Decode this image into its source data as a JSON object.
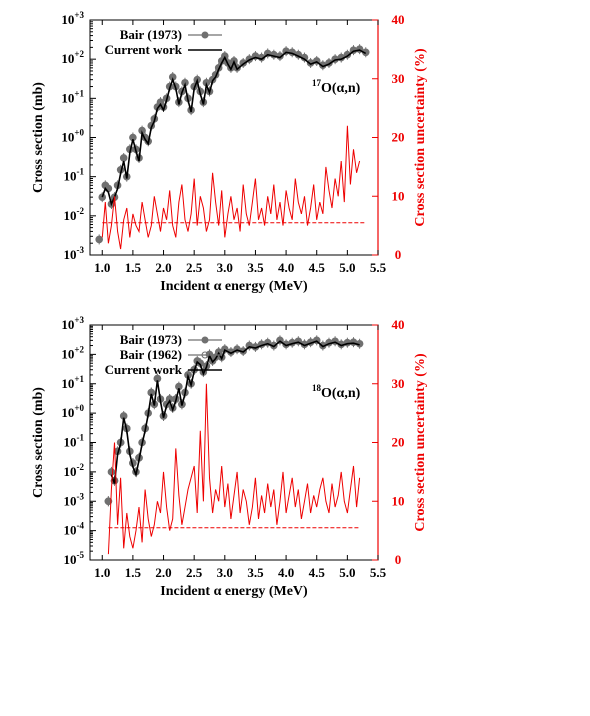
{
  "colors": {
    "primary": "#000000",
    "secondary": "#ee0000",
    "data": "#707070"
  },
  "chart_data": [
    {
      "type": "line",
      "annotation": {
        "sup": "17",
        "text": "O(α,n)"
      },
      "xlabel": "Incident α energy (MeV)",
      "ylabel": "Cross section (mb)",
      "y2label": "Cross section uncertainty (%)",
      "xlim": [
        0.8,
        5.5
      ],
      "ylim_log": [
        -3,
        3
      ],
      "y2lim": [
        0,
        40
      ],
      "x_ticks": [
        "1.0",
        "1.5",
        "2.0",
        "2.5",
        "3.0",
        "3.5",
        "4.0",
        "4.5",
        "5.0",
        "5.5"
      ],
      "y_ticks": [
        {
          "base": "10",
          "exp": "-3"
        },
        {
          "base": "10",
          "exp": "-2"
        },
        {
          "base": "10",
          "exp": "-1"
        },
        {
          "base": "10",
          "exp": "+0"
        },
        {
          "base": "10",
          "exp": "+1"
        },
        {
          "base": "10",
          "exp": "+2"
        },
        {
          "base": "10",
          "exp": "+3"
        }
      ],
      "y2_ticks": [
        "0",
        "10",
        "20",
        "30",
        "40"
      ],
      "legend": [
        "Bair (1973)",
        "Current work"
      ],
      "series": [
        {
          "name": "Bair (1973)",
          "style": "points",
          "x": [
            0.95,
            1.0,
            1.05,
            1.1,
            1.15,
            1.2,
            1.25,
            1.3,
            1.35,
            1.4,
            1.45,
            1.5,
            1.55,
            1.6,
            1.65,
            1.7,
            1.75,
            1.8,
            1.85,
            1.9,
            1.95,
            2.0,
            2.05,
            2.1,
            2.15,
            2.2,
            2.25,
            2.3,
            2.35,
            2.4,
            2.45,
            2.5,
            2.55,
            2.6,
            2.65,
            2.7,
            2.75,
            2.8,
            2.85,
            2.9,
            2.95,
            3.0,
            3.05,
            3.1,
            3.15,
            3.2,
            3.3,
            3.4,
            3.5,
            3.6,
            3.7,
            3.8,
            3.9,
            4.0,
            4.1,
            4.2,
            4.3,
            4.4,
            4.5,
            4.6,
            4.7,
            4.8,
            4.9,
            5.0,
            5.1,
            5.2,
            5.3
          ],
          "y": [
            0.0025,
            0.03,
            0.06,
            0.05,
            0.02,
            0.03,
            0.06,
            0.15,
            0.3,
            0.1,
            0.5,
            1.0,
            0.5,
            0.3,
            1.5,
            1.0,
            0.8,
            2.0,
            3.0,
            6.0,
            8.0,
            6.0,
            10,
            20,
            35,
            20,
            8,
            15,
            25,
            10,
            5,
            20,
            30,
            15,
            8,
            25,
            15,
            30,
            40,
            60,
            90,
            120,
            80,
            60,
            90,
            60,
            80,
            100,
            120,
            110,
            140,
            130,
            120,
            160,
            150,
            130,
            110,
            80,
            90,
            70,
            80,
            100,
            110,
            130,
            170,
            180,
            150
          ]
        },
        {
          "name": "Current work",
          "style": "line",
          "x": [
            1.0,
            1.05,
            1.1,
            1.15,
            1.2,
            1.25,
            1.3,
            1.35,
            1.4,
            1.45,
            1.5,
            1.55,
            1.6,
            1.65,
            1.7,
            1.75,
            1.8,
            1.85,
            1.9,
            1.95,
            2.0,
            2.05,
            2.1,
            2.15,
            2.2,
            2.25,
            2.3,
            2.35,
            2.4,
            2.45,
            2.5,
            2.55,
            2.6,
            2.65,
            2.7,
            2.75,
            2.8,
            2.85,
            2.9,
            2.95,
            3.0,
            3.05,
            3.1,
            3.15,
            3.2,
            3.3,
            3.4,
            3.5,
            3.6,
            3.7,
            3.8,
            3.9,
            4.0,
            4.1,
            4.2,
            4.3,
            4.4,
            4.5,
            4.6,
            4.7,
            4.8,
            4.9,
            5.0,
            5.1,
            5.2,
            5.3
          ],
          "y": [
            0.03,
            0.05,
            0.04,
            0.02,
            0.03,
            0.05,
            0.12,
            0.25,
            0.09,
            0.4,
            0.9,
            0.45,
            0.25,
            1.3,
            0.9,
            0.7,
            1.8,
            2.6,
            5.5,
            7,
            5,
            9,
            18,
            30,
            18,
            7,
            14,
            22,
            9,
            4.5,
            18,
            28,
            13,
            7,
            22,
            14,
            28,
            35,
            55,
            80,
            110,
            75,
            55,
            85,
            55,
            75,
            95,
            110,
            100,
            130,
            120,
            110,
            150,
            140,
            120,
            100,
            75,
            85,
            65,
            75,
            95,
            100,
            120,
            160,
            170,
            140
          ]
        },
        {
          "name": "",
          "style": "line-secondary",
          "x": [
            1.0,
            1.05,
            1.1,
            1.15,
            1.2,
            1.25,
            1.3,
            1.35,
            1.4,
            1.45,
            1.5,
            1.55,
            1.6,
            1.65,
            1.7,
            1.75,
            1.8,
            1.85,
            1.9,
            1.95,
            2.0,
            2.05,
            2.1,
            2.15,
            2.2,
            2.25,
            2.3,
            2.35,
            2.4,
            2.45,
            2.5,
            2.55,
            2.6,
            2.65,
            2.7,
            2.75,
            2.8,
            2.85,
            2.9,
            2.95,
            3.0,
            3.05,
            3.1,
            3.15,
            3.2,
            3.25,
            3.3,
            3.35,
            3.4,
            3.45,
            3.5,
            3.55,
            3.6,
            3.65,
            3.7,
            3.75,
            3.8,
            3.85,
            3.9,
            3.95,
            4.0,
            4.05,
            4.1,
            4.15,
            4.2,
            4.25,
            4.3,
            4.35,
            4.4,
            4.45,
            4.5,
            4.55,
            4.6,
            4.65,
            4.7,
            4.75,
            4.8,
            4.85,
            4.9,
            4.95,
            5.0,
            5.05,
            5.1,
            5.15,
            5.2
          ],
          "y": [
            3,
            9,
            2,
            5,
            10,
            4,
            1,
            6,
            8,
            3,
            7,
            5,
            4,
            9,
            6,
            3,
            5,
            10,
            7,
            4,
            8,
            6,
            11,
            5,
            3,
            9,
            12,
            6,
            4,
            7,
            13,
            5,
            10,
            8,
            4,
            6,
            14,
            9,
            5,
            11,
            3,
            7,
            10,
            6,
            8,
            4,
            12,
            7,
            5,
            9,
            13,
            6,
            8,
            5,
            10,
            7,
            12,
            6,
            9,
            5,
            11,
            8,
            6,
            13,
            9,
            7,
            10,
            5,
            8,
            12,
            6,
            9,
            7,
            15,
            11,
            8,
            13,
            10,
            16,
            9,
            22,
            12,
            18,
            14,
            16
          ]
        },
        {
          "name": "",
          "style": "dashed-secondary",
          "x": [
            1.0,
            5.3
          ],
          "y": [
            5.5,
            5.5
          ]
        }
      ]
    },
    {
      "type": "line",
      "annotation": {
        "sup": "18",
        "text": "O(α,n)"
      },
      "xlabel": "Incident α energy (MeV)",
      "ylabel": "Cross section (mb)",
      "y2label": "Cross section uncertainty (%)",
      "xlim": [
        0.8,
        5.5
      ],
      "ylim_log": [
        -5,
        3
      ],
      "y2lim": [
        0,
        40
      ],
      "x_ticks": [
        "1.0",
        "1.5",
        "2.0",
        "2.5",
        "3.0",
        "3.5",
        "4.0",
        "4.5",
        "5.0",
        "5.5"
      ],
      "y_ticks": [
        {
          "base": "10",
          "exp": "-5"
        },
        {
          "base": "10",
          "exp": "-4"
        },
        {
          "base": "10",
          "exp": "-3"
        },
        {
          "base": "10",
          "exp": "-2"
        },
        {
          "base": "10",
          "exp": "-1"
        },
        {
          "base": "10",
          "exp": "+0"
        },
        {
          "base": "10",
          "exp": "+1"
        },
        {
          "base": "10",
          "exp": "+2"
        },
        {
          "base": "10",
          "exp": "+3"
        }
      ],
      "y2_ticks": [
        "0",
        "10",
        "20",
        "30",
        "40"
      ],
      "legend": [
        "Bair (1973)",
        "Bair (1962)",
        "Current work"
      ],
      "series": [
        {
          "name": "Bair (1973)",
          "style": "points",
          "x": [
            1.1,
            1.15,
            1.2,
            1.25,
            1.3,
            1.35,
            1.4,
            1.45,
            1.5,
            1.55,
            1.6,
            1.65,
            1.7,
            1.75,
            1.8,
            1.85,
            1.9,
            1.95,
            2.0,
            2.05,
            2.1,
            2.15,
            2.2,
            2.25,
            2.3,
            2.35,
            2.4,
            2.45,
            2.5,
            2.55,
            2.6,
            2.65,
            2.7,
            2.75,
            2.8,
            2.85,
            2.9,
            2.95,
            3.0,
            3.1,
            3.2,
            3.3,
            3.4,
            3.5,
            3.6,
            3.7,
            3.8,
            3.9,
            4.0,
            4.1,
            4.2,
            4.3,
            4.4,
            4.5,
            4.6,
            4.7,
            4.8,
            4.9,
            5.0,
            5.1,
            5.2
          ],
          "y": [
            0.001,
            0.01,
            0.005,
            0.05,
            0.1,
            0.8,
            0.3,
            0.05,
            0.02,
            0.01,
            0.03,
            0.1,
            0.3,
            1.0,
            5,
            2,
            15,
            3,
            0.8,
            2,
            3,
            1.5,
            3,
            8,
            2,
            5,
            20,
            10,
            30,
            60,
            50,
            25,
            40,
            100,
            60,
            80,
            120,
            80,
            150,
            120,
            150,
            130,
            200,
            180,
            220,
            250,
            200,
            300,
            220,
            250,
            280,
            220,
            260,
            300,
            200,
            250,
            280,
            220,
            250,
            260,
            230
          ]
        },
        {
          "name": "Bair (1962)",
          "style": "points",
          "x": [
            1.1,
            1.2,
            1.3,
            1.4,
            1.5,
            1.6,
            1.7,
            1.8,
            1.9,
            2.0,
            2.1,
            2.2,
            2.3,
            2.4,
            2.5
          ],
          "y": [
            0.001,
            0.005,
            0.1,
            0.3,
            0.02,
            0.03,
            0.3,
            5,
            15,
            0.8,
            3,
            3,
            2,
            20,
            30
          ]
        },
        {
          "name": "Current work",
          "style": "line",
          "x": [
            1.15,
            1.2,
            1.25,
            1.3,
            1.35,
            1.4,
            1.45,
            1.5,
            1.55,
            1.6,
            1.65,
            1.7,
            1.75,
            1.8,
            1.85,
            1.9,
            1.95,
            2.0,
            2.05,
            2.1,
            2.15,
            2.2,
            2.25,
            2.3,
            2.35,
            2.4,
            2.45,
            2.5,
            2.55,
            2.6,
            2.65,
            2.7,
            2.75,
            2.8,
            2.85,
            2.9,
            2.95,
            3.0,
            3.1,
            3.2,
            3.3,
            3.4,
            3.5,
            3.6,
            3.7,
            3.8,
            3.9,
            4.0,
            4.1,
            4.2,
            4.3,
            4.4,
            4.5,
            4.6,
            4.7,
            4.8,
            4.9,
            5.0,
            5.1,
            5.2
          ],
          "y": [
            0.008,
            0.004,
            0.04,
            0.09,
            0.7,
            0.25,
            0.04,
            0.015,
            0.008,
            0.025,
            0.09,
            0.25,
            0.9,
            4.5,
            1.8,
            13,
            2.5,
            0.7,
            1.8,
            2.6,
            1.3,
            2.6,
            7,
            1.8,
            4.5,
            18,
            9,
            27,
            55,
            45,
            22,
            36,
            90,
            55,
            72,
            110,
            72,
            140,
            110,
            140,
            120,
            180,
            165,
            200,
            230,
            185,
            280,
            200,
            230,
            260,
            200,
            240,
            280,
            185,
            230,
            260,
            200,
            230,
            240,
            210
          ]
        },
        {
          "name": "",
          "style": "line-secondary",
          "x": [
            1.1,
            1.15,
            1.2,
            1.25,
            1.3,
            1.35,
            1.4,
            1.45,
            1.5,
            1.55,
            1.6,
            1.65,
            1.7,
            1.75,
            1.8,
            1.85,
            1.9,
            1.95,
            2.0,
            2.05,
            2.1,
            2.15,
            2.2,
            2.25,
            2.3,
            2.35,
            2.4,
            2.45,
            2.5,
            2.55,
            2.6,
            2.65,
            2.7,
            2.75,
            2.8,
            2.85,
            2.9,
            2.95,
            3.0,
            3.05,
            3.1,
            3.15,
            3.2,
            3.25,
            3.3,
            3.35,
            3.4,
            3.45,
            3.5,
            3.55,
            3.6,
            3.65,
            3.7,
            3.75,
            3.8,
            3.85,
            3.9,
            3.95,
            4.0,
            4.05,
            4.1,
            4.15,
            4.2,
            4.25,
            4.3,
            4.35,
            4.4,
            4.45,
            4.5,
            4.55,
            4.6,
            4.65,
            4.7,
            4.75,
            4.8,
            4.85,
            4.9,
            4.95,
            5.0,
            5.05,
            5.1,
            5.15,
            5.2
          ],
          "y": [
            1,
            12,
            20,
            6,
            14,
            2,
            8,
            4,
            2,
            5,
            9,
            3,
            12,
            7,
            4,
            6,
            10,
            8,
            15,
            9,
            5,
            7,
            19,
            11,
            6,
            9,
            12,
            14,
            16,
            8,
            22,
            10,
            30,
            14,
            8,
            12,
            10,
            16,
            9,
            13,
            7,
            11,
            15,
            8,
            12,
            10,
            6,
            9,
            14,
            7,
            11,
            8,
            13,
            9,
            12,
            6,
            10,
            15,
            8,
            11,
            14,
            9,
            12,
            7,
            10,
            13,
            8,
            11,
            9,
            12,
            14,
            10,
            8,
            13,
            9,
            11,
            15,
            10,
            8,
            12,
            16,
            9,
            14
          ]
        },
        {
          "name": "",
          "style": "dashed-secondary",
          "x": [
            1.1,
            5.2
          ],
          "y": [
            5.5,
            5.5
          ]
        }
      ]
    }
  ]
}
